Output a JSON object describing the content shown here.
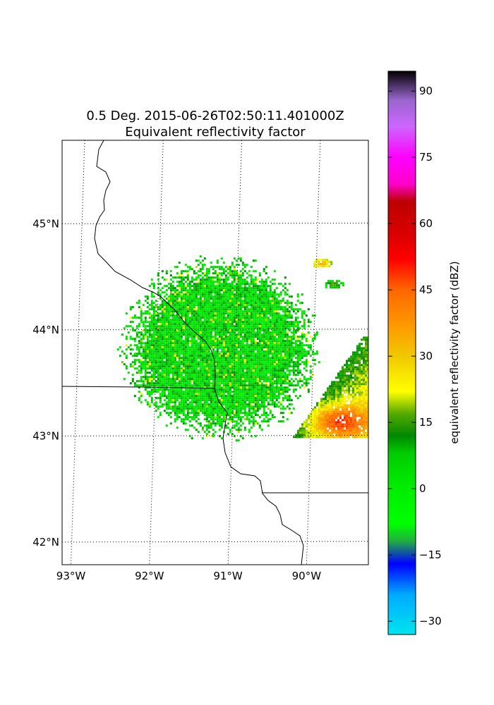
{
  "chart_data": {
    "type": "heatmap",
    "title_line1": "0.5 Deg. 2015-06-26T02:50:11.401000Z",
    "title_line2": "Equivalent reflectivity factor",
    "colorbar": {
      "label": "equivalent reflectivity factor (dBZ)",
      "range": [
        -33,
        94.5
      ],
      "ticks": [
        -30,
        -15,
        0,
        15,
        30,
        45,
        60,
        75,
        90
      ],
      "tick_labels": [
        "−30",
        "−15",
        "0",
        "15",
        "30",
        "45",
        "60",
        "75",
        "90"
      ],
      "stops": [
        [
          -33,
          "#00e5ee"
        ],
        [
          -24,
          "#00aaff"
        ],
        [
          -17,
          "#0000ff"
        ],
        [
          -12,
          "#22aa44"
        ],
        [
          -8,
          "#00ff00"
        ],
        [
          0,
          "#00ee00"
        ],
        [
          8,
          "#00cc00"
        ],
        [
          12,
          "#008800"
        ],
        [
          17,
          "#55aa00"
        ],
        [
          22,
          "#ffff00"
        ],
        [
          30,
          "#f0c800"
        ],
        [
          37,
          "#ff9900"
        ],
        [
          45,
          "#ff6600"
        ],
        [
          52,
          "#ff0000"
        ],
        [
          57,
          "#dd0000"
        ],
        [
          65,
          "#bb0000"
        ],
        [
          69,
          "#ff00cc"
        ],
        [
          75,
          "#ff00ff"
        ],
        [
          82,
          "#cc66ff"
        ],
        [
          88,
          "#9966cc"
        ],
        [
          94.5,
          "#000000"
        ]
      ]
    },
    "map": {
      "lon_range": [
        -93.2,
        -89.3
      ],
      "lat_range": [
        41.8,
        45.8
      ],
      "lon_ticks": [
        -93,
        -92,
        -91,
        -90
      ],
      "lon_labels": [
        "93°W",
        "92°W",
        "91°W",
        "90°W"
      ],
      "lat_ticks": [
        42,
        43,
        44,
        45
      ],
      "lat_labels": [
        "42°N",
        "43°N",
        "44°N",
        "45°N"
      ],
      "gridlines": "dotted",
      "radar_site": [
        -91.19,
        43.82
      ]
    },
    "echo_regions": [
      {
        "kind": "clutter",
        "center": [
          -91.2,
          43.85
        ],
        "radius_deg": 1.05,
        "dbz": 5
      },
      {
        "kind": "storm",
        "lon": [
          -90.1,
          -89.3
        ],
        "lat": [
          43.0,
          43.95
        ],
        "max_dbz": 55
      },
      {
        "kind": "cell",
        "center": [
          -89.9,
          44.65
        ],
        "max_dbz": 38
      },
      {
        "kind": "cell",
        "center": [
          -89.75,
          44.45
        ],
        "max_dbz": 22
      }
    ]
  }
}
